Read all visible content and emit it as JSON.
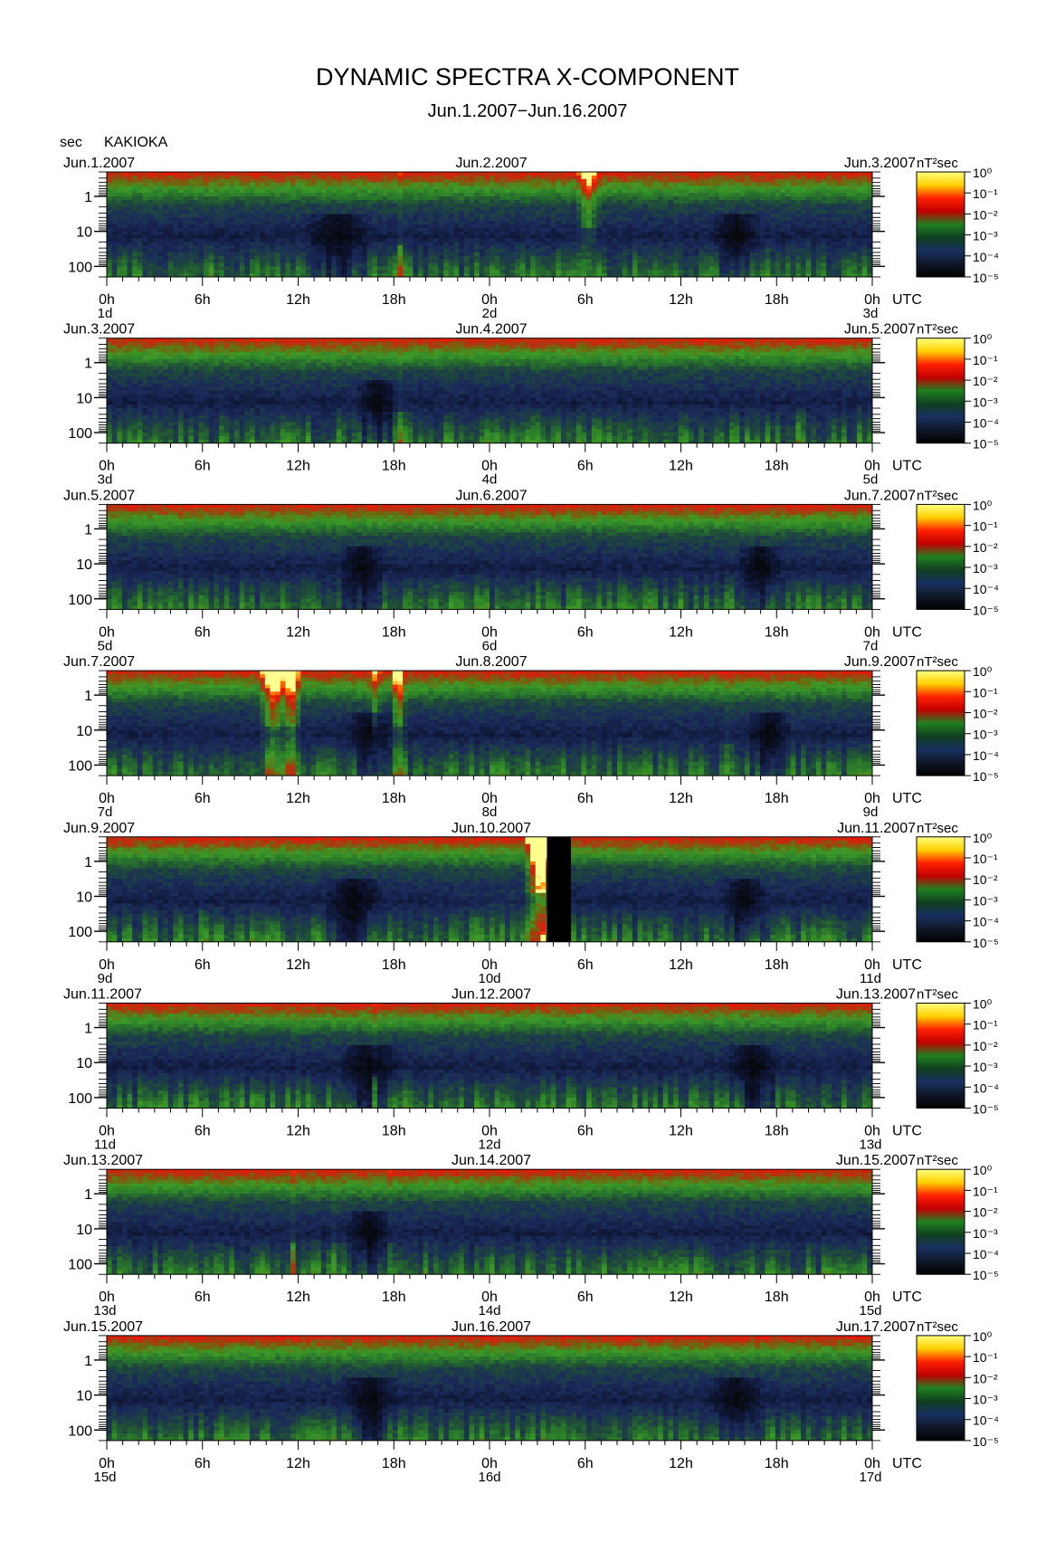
{
  "title": "DYNAMIC SPECTRA X-COMPONENT",
  "subtitle": "Jun.1.2007−Jun.16.2007",
  "station": "KAKIOKA",
  "yunit": "sec",
  "cbar_unit": "nT²sec",
  "utc_label": "UTC",
  "chart_data": {
    "type": "heatmap",
    "title": "DYNAMIC SPECTRA X-COMPONENT",
    "subtitle": "Jun.1.2007−Jun.16.2007",
    "ylabel": "sec",
    "ylim": [
      0.2,
      200
    ],
    "y_scale": "log",
    "y_ticks": [
      "1",
      "10",
      "100"
    ],
    "x_ticks": [
      "0h",
      "6h",
      "12h",
      "18h",
      "0h",
      "6h",
      "12h",
      "18h",
      "0h"
    ],
    "colorbar": {
      "label": "nT²sec",
      "ticks": [
        "10⁰",
        "10⁻¹",
        "10⁻²",
        "10⁻³",
        "10⁻⁴",
        "10⁻⁵"
      ],
      "colors": [
        "#ffff80",
        "#ffd000",
        "#ff2000",
        "#c00000",
        "#208020",
        "#104020",
        "#183060",
        "#101828",
        "#000000"
      ]
    },
    "panels": [
      {
        "date_left": "Jun.1.2007",
        "date_mid": "Jun.2.2007",
        "date_right": "Jun.3.2007",
        "day_left": "1d",
        "day_mid": "2d",
        "day_right": "3d",
        "bursts": [
          [
            30.2,
            0.8,
            1.8
          ],
          [
            18.4,
            0.3,
            0.3
          ]
        ],
        "quiet": [
          [
            14.5,
            4.5
          ],
          [
            39.5,
            3.5
          ]
        ],
        "gap": null,
        "dusk_enhancement": false
      },
      {
        "date_left": "Jun.3.2007",
        "date_mid": "Jun.4.2007",
        "date_right": "Jun.5.2007",
        "day_left": "3d",
        "day_mid": "4d",
        "day_right": "5d",
        "bursts": [
          [
            18.3,
            0.5,
            0.2
          ],
          [
            26.8,
            0.4,
            0.1
          ],
          [
            43.5,
            0.4,
            0.1
          ]
        ],
        "quiet": [
          [
            17.0,
            3.0
          ]
        ],
        "gap": null,
        "dusk_enhancement": false
      },
      {
        "date_left": "Jun.5.2007",
        "date_mid": "Jun.6.2007",
        "date_right": "Jun.7.2007",
        "day_left": "5d",
        "day_mid": "6d",
        "day_right": "7d",
        "bursts": [
          [
            4.6,
            0.3,
            0.1
          ],
          [
            27.0,
            0.2,
            0.1
          ]
        ],
        "quiet": [
          [
            16.0,
            3.0
          ],
          [
            41.0,
            3.0
          ]
        ],
        "gap": null,
        "dusk_enhancement": false
      },
      {
        "date_left": "Jun.7.2007",
        "date_mid": "Jun.8.2007",
        "date_right": "Jun.9.2007",
        "day_left": "7d",
        "day_mid": "8d",
        "day_right": "9d",
        "bursts": [
          [
            10.5,
            1.0,
            3.0
          ],
          [
            11.6,
            0.6,
            3.0
          ],
          [
            16.8,
            0.4,
            1.2
          ],
          [
            18.3,
            0.5,
            2.5
          ],
          [
            39.0,
            0.4,
            0.2
          ]
        ],
        "quiet": [
          [
            16.5,
            3.0
          ],
          [
            41.5,
            3.0
          ]
        ],
        "gap": null,
        "dusk_enhancement": false
      },
      {
        "date_left": "Jun.9.2007",
        "date_mid": "Jun.10.2007",
        "date_right": "Jun.11.2007",
        "day_left": "9d",
        "day_mid": "10d",
        "day_right": "11d",
        "bursts": [
          [
            27.2,
            1.0,
            5.0
          ],
          [
            6.0,
            0.3,
            0.2
          ]
        ],
        "quiet": [
          [
            15.5,
            4.0
          ],
          [
            40.0,
            3.0
          ]
        ],
        "gap": [
          27.6,
          29.1
        ],
        "dusk_enhancement": true
      },
      {
        "date_left": "Jun.11.2007",
        "date_mid": "Jun.12.2007",
        "date_right": "Jun.13.2007",
        "day_left": "11d",
        "day_mid": "12d",
        "day_right": "13d",
        "bursts": [
          [
            16.8,
            0.3,
            0.3
          ]
        ],
        "quiet": [
          [
            16.5,
            4.0
          ],
          [
            40.5,
            3.5
          ]
        ],
        "gap": null,
        "dusk_enhancement": false
      },
      {
        "date_left": "Jun.13.2007",
        "date_mid": "Jun.14.2007",
        "date_right": "Jun.15.2007",
        "day_left": "13d",
        "day_mid": "14d",
        "day_right": "15d",
        "bursts": [
          [
            11.7,
            0.3,
            0.3
          ],
          [
            14.3,
            0.3,
            0.2
          ],
          [
            17.8,
            0.3,
            0.2
          ]
        ],
        "quiet": [
          [
            16.5,
            3.0
          ]
        ],
        "gap": null,
        "dusk_enhancement": false
      },
      {
        "date_left": "Jun.15.2007",
        "date_mid": "Jun.16.2007",
        "date_right": "Jun.17.2007",
        "day_left": "15d",
        "day_mid": "16d",
        "day_right": "17d",
        "bursts": [],
        "quiet": [
          [
            16.5,
            4.0
          ],
          [
            39.5,
            4.0
          ]
        ],
        "gap": null,
        "dusk_enhancement": false
      }
    ]
  }
}
